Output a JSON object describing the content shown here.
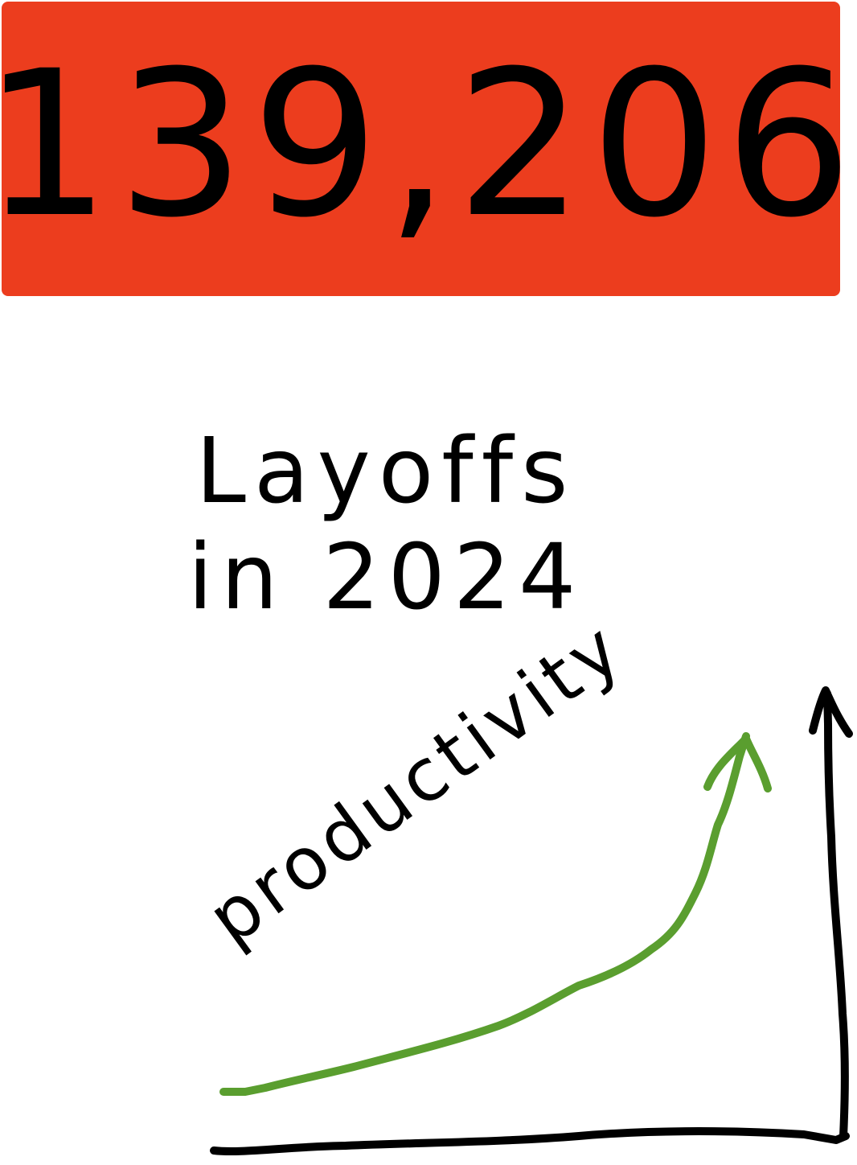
{
  "banner": {
    "value": "139,206",
    "color": "#EC3D1E"
  },
  "title": {
    "line1": "Layoffs",
    "line2": "in 2024"
  },
  "chart": {
    "label": "productivity",
    "trend_color": "#5A9E2F",
    "axis_color": "#000000",
    "trend": "rising"
  }
}
